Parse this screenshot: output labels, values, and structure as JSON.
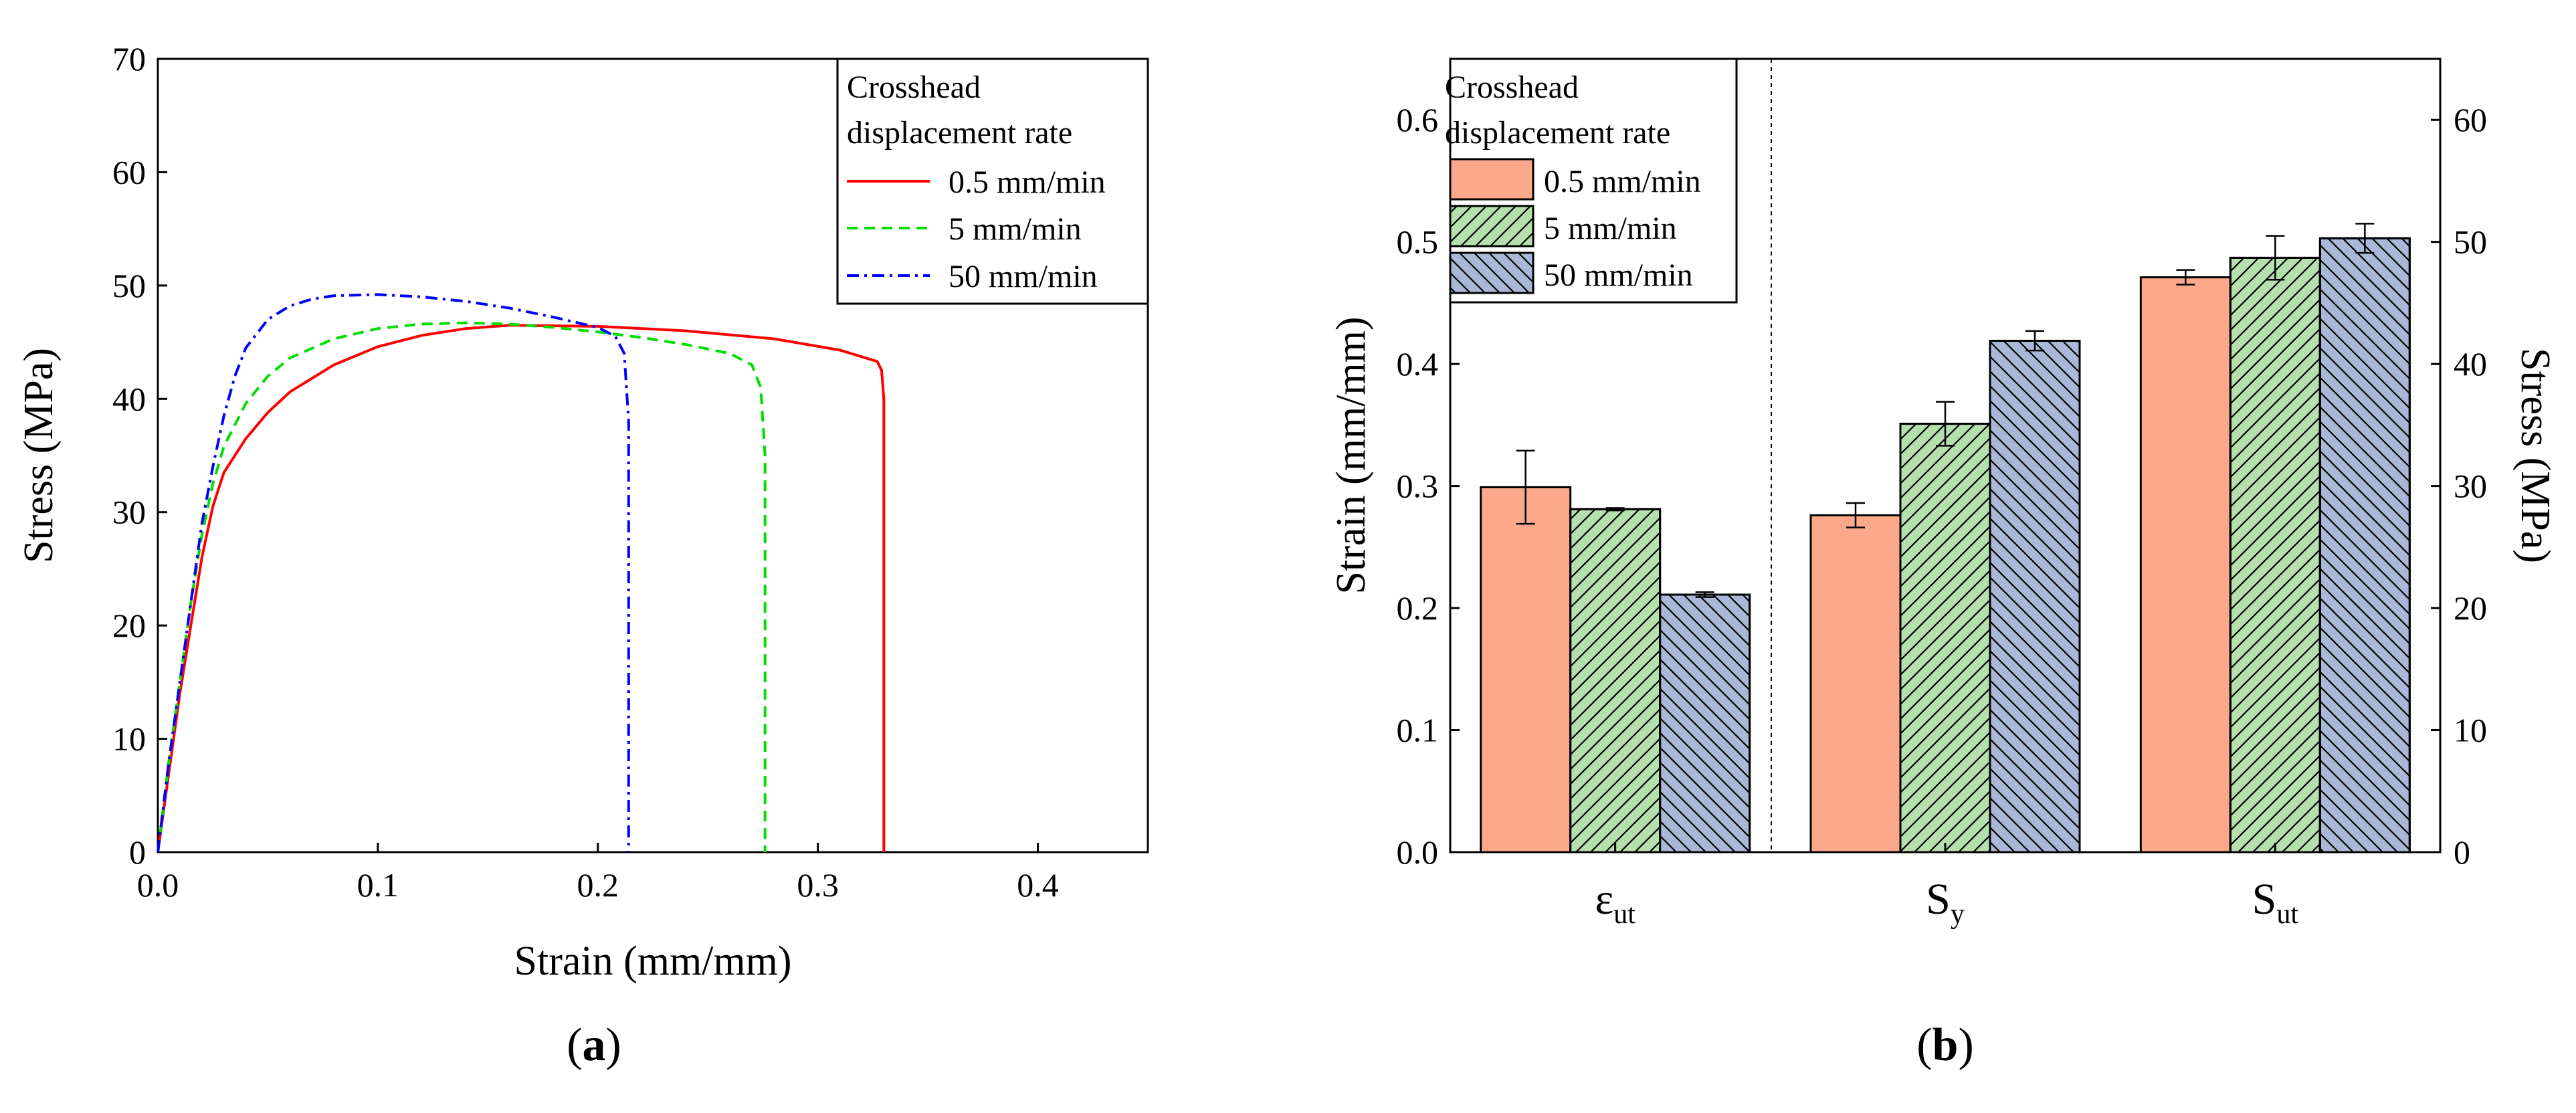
{
  "chart_data": [
    {
      "type": "line",
      "panel_label": "(a)",
      "panel_letter": "a",
      "xlabel": "Strain (mm/mm)",
      "ylabel": "Stress (MPa)",
      "xlim": [
        0,
        0.45
      ],
      "ylim": [
        0,
        70
      ],
      "xticks": [
        0.0,
        0.1,
        0.2,
        0.3,
        0.4
      ],
      "xtick_labels": [
        "0.0",
        "0.1",
        "0.2",
        "0.3",
        "0.4"
      ],
      "yticks": [
        0,
        10,
        20,
        30,
        40,
        50,
        60,
        70
      ],
      "ytick_labels": [
        "0",
        "10",
        "20",
        "30",
        "40",
        "50",
        "60",
        "70"
      ],
      "grid": false,
      "legend": {
        "title_line1": "Crosshead",
        "title_line2": "displacement rate",
        "placement": "top-right"
      },
      "series": [
        {
          "name": "0.5 mm/min",
          "color": "#ff0000",
          "dash": "solid",
          "points": [
            [
              0,
              0
            ],
            [
              0.005,
              7
            ],
            [
              0.01,
              14
            ],
            [
              0.015,
              20
            ],
            [
              0.02,
              26
            ],
            [
              0.025,
              30.5
            ],
            [
              0.03,
              33.5
            ],
            [
              0.04,
              36.5
            ],
            [
              0.05,
              38.8
            ],
            [
              0.06,
              40.6
            ],
            [
              0.08,
              43
            ],
            [
              0.1,
              44.6
            ],
            [
              0.12,
              45.6
            ],
            [
              0.14,
              46.2
            ],
            [
              0.16,
              46.5
            ],
            [
              0.2,
              46.4
            ],
            [
              0.24,
              46
            ],
            [
              0.28,
              45.3
            ],
            [
              0.31,
              44.3
            ],
            [
              0.327,
              43.3
            ],
            [
              0.329,
              42.5
            ],
            [
              0.33,
              40
            ],
            [
              0.33,
              20
            ],
            [
              0.33,
              0
            ]
          ]
        },
        {
          "name": "5 mm/min",
          "color": "#00dd00",
          "dash": "dashed",
          "points": [
            [
              0,
              0
            ],
            [
              0.005,
              8
            ],
            [
              0.01,
              15
            ],
            [
              0.015,
              22
            ],
            [
              0.02,
              28
            ],
            [
              0.025,
              32.5
            ],
            [
              0.03,
              35.8
            ],
            [
              0.04,
              39.6
            ],
            [
              0.05,
              42
            ],
            [
              0.06,
              43.6
            ],
            [
              0.08,
              45.3
            ],
            [
              0.1,
              46.2
            ],
            [
              0.12,
              46.6
            ],
            [
              0.14,
              46.7
            ],
            [
              0.16,
              46.6
            ],
            [
              0.18,
              46.3
            ],
            [
              0.2,
              45.9
            ],
            [
              0.22,
              45.4
            ],
            [
              0.24,
              44.8
            ],
            [
              0.26,
              44
            ],
            [
              0.27,
              43
            ],
            [
              0.274,
              41
            ],
            [
              0.276,
              35
            ],
            [
              0.276,
              0
            ]
          ]
        },
        {
          "name": "50 mm/min",
          "color": "#0000ff",
          "dash": "dashdot",
          "points": [
            [
              0,
              0
            ],
            [
              0.005,
              8
            ],
            [
              0.01,
              15
            ],
            [
              0.015,
              22
            ],
            [
              0.02,
              29
            ],
            [
              0.025,
              34
            ],
            [
              0.03,
              38.5
            ],
            [
              0.035,
              42
            ],
            [
              0.04,
              44.5
            ],
            [
              0.05,
              47
            ],
            [
              0.06,
              48.2
            ],
            [
              0.07,
              48.8
            ],
            [
              0.08,
              49.1
            ],
            [
              0.1,
              49.2
            ],
            [
              0.12,
              49
            ],
            [
              0.14,
              48.6
            ],
            [
              0.16,
              48
            ],
            [
              0.18,
              47.2
            ],
            [
              0.2,
              46.3
            ],
            [
              0.208,
              45.5
            ],
            [
              0.212,
              44
            ],
            [
              0.214,
              38
            ],
            [
              0.214,
              0
            ]
          ]
        }
      ]
    },
    {
      "type": "bar",
      "panel_label": "(b)",
      "panel_letter": "b",
      "ylabel": "Strain (mm/mm)",
      "ylabel_right": "Stress (MPa)",
      "ylim": [
        0,
        0.65
      ],
      "yticks": [
        0.0,
        0.1,
        0.2,
        0.3,
        0.4,
        0.5,
        0.6
      ],
      "ytick_labels": [
        "0.0",
        "0.1",
        "0.2",
        "0.3",
        "0.4",
        "0.5",
        "0.6"
      ],
      "ylim_right": [
        0,
        65
      ],
      "yticks_right": [
        0,
        10,
        20,
        30,
        40,
        50,
        60
      ],
      "ytick_labels_right": [
        "0",
        "10",
        "20",
        "30",
        "40",
        "50",
        "60"
      ],
      "grid": false,
      "categories": [
        {
          "main": "ε",
          "sub": "ut",
          "axis": "left"
        },
        {
          "main": "S",
          "sub": "y",
          "axis": "right"
        },
        {
          "main": "S",
          "sub": "ut",
          "axis": "right"
        }
      ],
      "legend": {
        "title_line1": "Crosshead",
        "title_line2": "displacement rate",
        "placement": "top-left"
      },
      "series": [
        {
          "name": "0.5 mm/min",
          "fill": "#fba98a",
          "hatch": "none",
          "values": [
            0.299,
            27.6,
            47.1
          ],
          "errors": [
            0.03,
            1.0,
            0.6
          ]
        },
        {
          "name": "5 mm/min",
          "fill": "#b5e0ae",
          "hatch": "forward",
          "values": [
            0.281,
            35.1,
            48.7
          ],
          "errors": [
            0.001,
            1.8,
            1.8
          ]
        },
        {
          "name": "50 mm/min",
          "fill": "#a9b8d6",
          "hatch": "backward",
          "values": [
            0.211,
            41.9,
            50.3
          ],
          "errors": [
            0.002,
            0.8,
            1.2
          ]
        }
      ]
    }
  ]
}
